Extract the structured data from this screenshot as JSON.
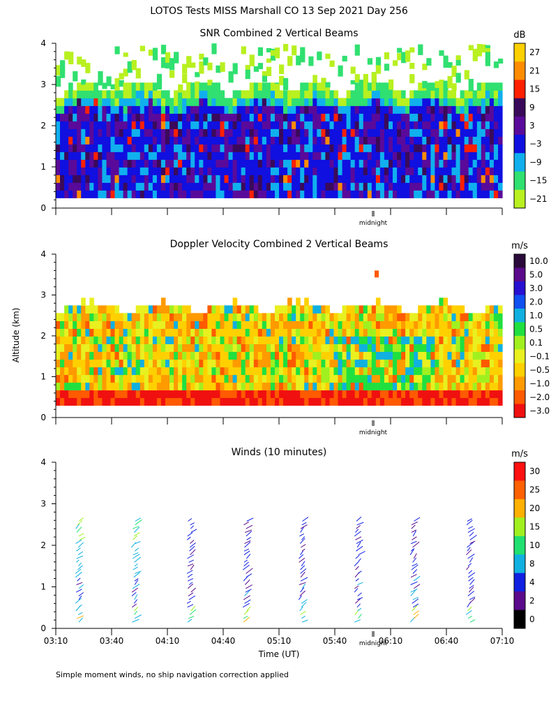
{
  "title": "LOTOS Tests MISS Marshall CO  13 Sep 2021 Day 256",
  "ylabel": "Altitude (km)",
  "xlabel": "Time (UT)",
  "footnote": "Simple moment winds, no ship navigation correction applied",
  "midnight_label": "midnight",
  "chart_data": [
    {
      "type": "heatmap",
      "title": "SNR Combined 2 Vertical Beams",
      "ylim": [
        0,
        4
      ],
      "yticks": [
        "0",
        "1",
        "2",
        "3",
        "4"
      ],
      "colorbar": {
        "unit": "dB",
        "labels": [
          "27",
          "21",
          "15",
          "9",
          "3",
          "−3",
          "−9",
          "−15",
          "−21"
        ],
        "colors": [
          "#ffd000",
          "#ff8c00",
          "#ff2000",
          "#3a0a5a",
          "#5a0a9a",
          "#1010e0",
          "#10b0ee",
          "#30e070",
          "#b8f020"
        ]
      },
      "description_of_field": {
        "low_altitude_km": 0.25,
        "top_altitude_km": [
          2.6,
          2.9
        ],
        "scattered_echo_above_km": 4.0
      }
    },
    {
      "type": "heatmap",
      "title": "Doppler Velocity Combined 2 Vertical Beams",
      "ylim": [
        0,
        4
      ],
      "yticks": [
        "0",
        "1",
        "2",
        "3",
        "4"
      ],
      "colorbar": {
        "unit": "m/s",
        "labels": [
          "10.0",
          "5.0",
          "3.0",
          "2.0",
          "1.0",
          "0.5",
          "0.1",
          "−0.1",
          "−0.5",
          "−1.0",
          "−2.0",
          "−3.0"
        ],
        "colors": [
          "#2a0a3a",
          "#5a0a8a",
          "#2810d0",
          "#1050f0",
          "#10b0e0",
          "#20e040",
          "#a0f020",
          "#e8f020",
          "#ffd000",
          "#ff9a00",
          "#ff5a00",
          "#f01010"
        ]
      }
    },
    {
      "type": "scatter",
      "title": "Winds (10 minutes)",
      "ylim": [
        0,
        4
      ],
      "yticks": [
        "0",
        "1",
        "2",
        "3",
        "4"
      ],
      "xticks": [
        "03:10",
        "03:40",
        "04:10",
        "04:40",
        "05:10",
        "05:40",
        "06:10",
        "06:40",
        "07:10"
      ],
      "colorbar": {
        "unit": "m/s",
        "labels": [
          "30",
          "25",
          "20",
          "15",
          "10",
          "8",
          "4",
          "2",
          "0"
        ],
        "colors": [
          "#ff1010",
          "#ff6000",
          "#ffb000",
          "#a0f020",
          "#20e070",
          "#10b0e0",
          "#1020e0",
          "#5a0a8a",
          "#000000"
        ]
      },
      "profile_times": [
        "03:25",
        "03:55",
        "04:25",
        "04:55",
        "05:25",
        "05:55",
        "06:25",
        "06:55"
      ]
    }
  ]
}
